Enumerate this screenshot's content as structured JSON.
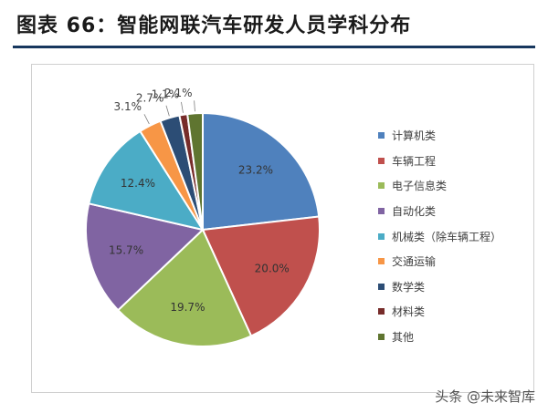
{
  "title": "图表 66：智能网联汽车研发人员学科分布",
  "watermark": "头条 @未来智库",
  "chart_data": {
    "type": "pie",
    "title": "",
    "legend_position": "right",
    "categories": [
      "计算机类",
      "车辆工程",
      "电子信息类",
      "自动化类",
      "机械类（除车辆工程）",
      "交通运输",
      "数学类",
      "材料类",
      "其他"
    ],
    "values": [
      23.2,
      20.0,
      19.7,
      15.7,
      12.4,
      3.1,
      2.7,
      1.1,
      2.1
    ],
    "labels": [
      "23.2%",
      "20.0%",
      "19.7%",
      "15.7%",
      "12.4%",
      "3.1%",
      "2.7%",
      "1.1%",
      "2.1%"
    ],
    "colors": [
      "#4f81bd",
      "#c0504d",
      "#9bbb59",
      "#8064a2",
      "#4bacc6",
      "#f79646",
      "#2c4d75",
      "#772c2a",
      "#5f7530"
    ]
  }
}
